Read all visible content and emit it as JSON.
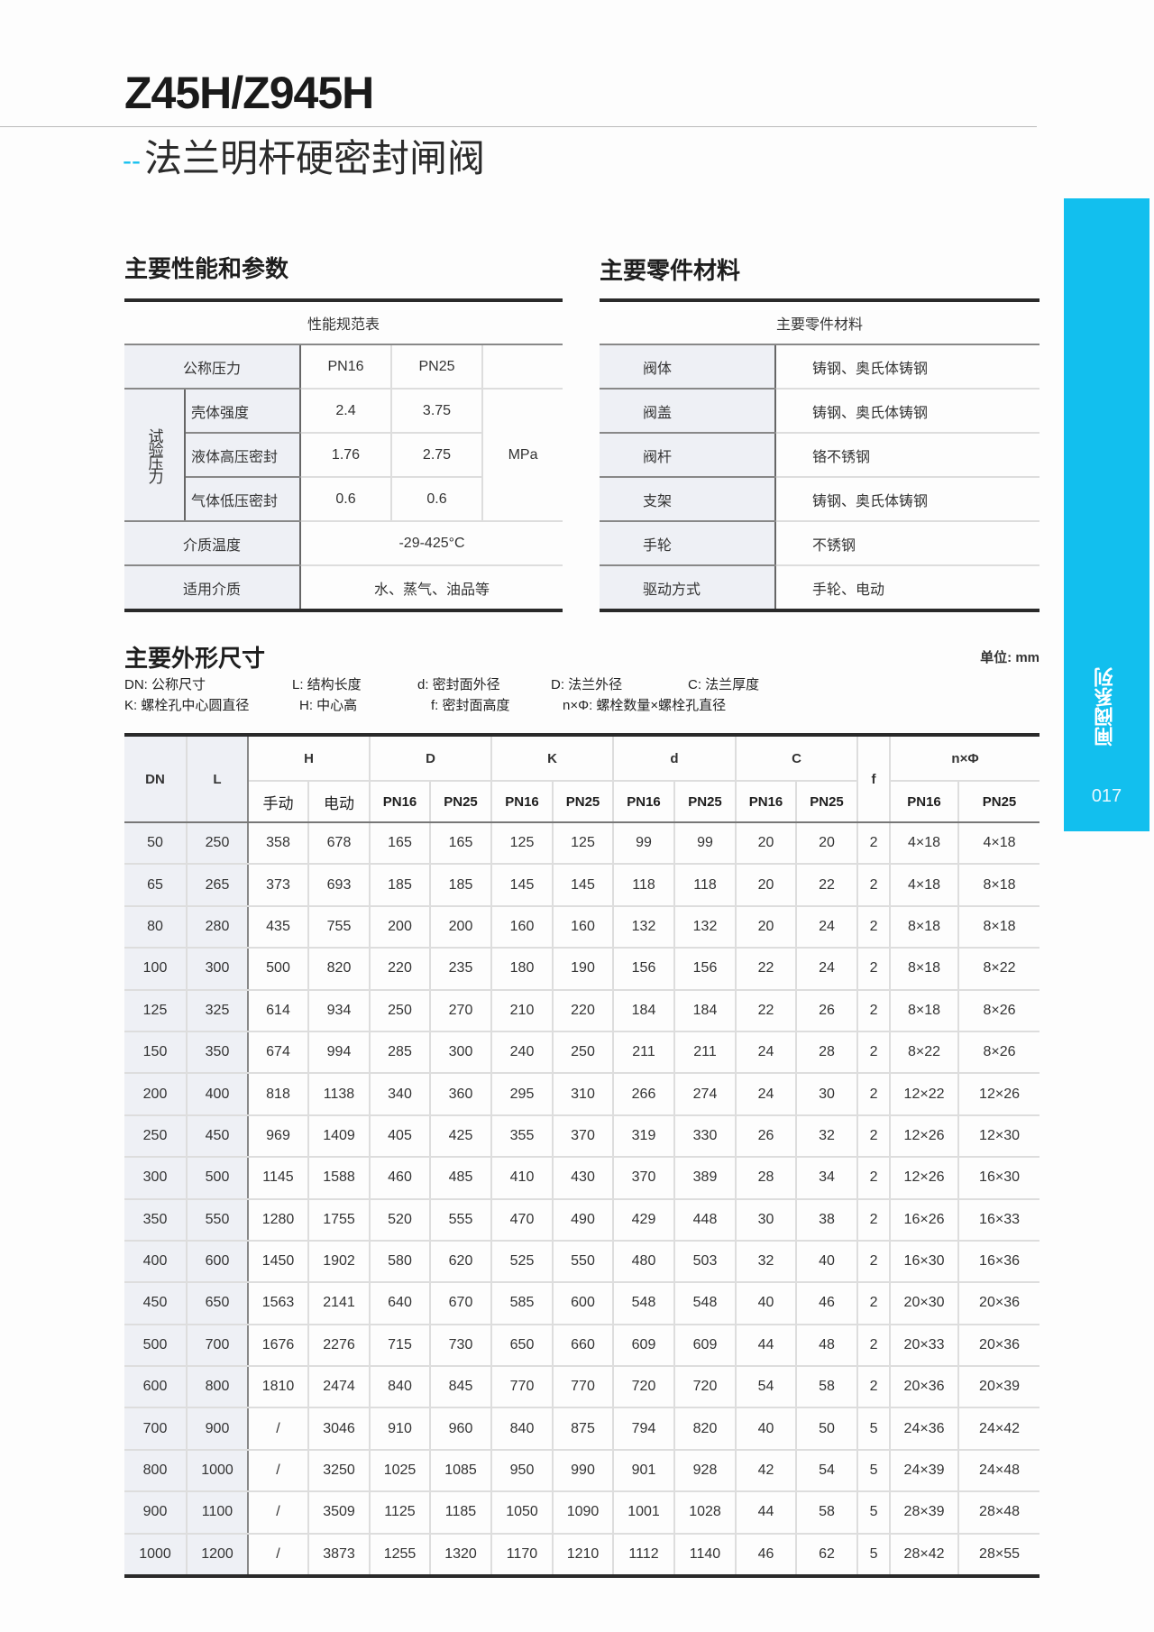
{
  "header": {
    "title": "Z45H/Z945H",
    "subtitle_prefix": "--",
    "subtitle": "法兰明杆硬密封闸阀"
  },
  "side_tab": {
    "series": "闸阀系列",
    "page": "017",
    "color": "#12bfee"
  },
  "performance": {
    "heading": "主要性能和参数",
    "caption": "性能规范表",
    "nominal_pressure_label": "公称压力",
    "pn16": "PN16",
    "pn25": "PN25",
    "test_pressure_label": "试验压力",
    "rows": [
      {
        "label": "壳体强度",
        "pn16": "2.4",
        "pn25": "3.75"
      },
      {
        "label": "液体高压密封",
        "pn16": "1.76",
        "pn25": "2.75"
      },
      {
        "label": "气体低压密封",
        "pn16": "0.6",
        "pn25": "0.6"
      }
    ],
    "unit": "MPa",
    "temp_label": "介质温度",
    "temp_value": "-29-425°C",
    "media_label": "适用介质",
    "media_value": "水、蒸气、油品等"
  },
  "materials": {
    "heading": "主要零件材料",
    "caption": "主要零件材料",
    "rows": [
      {
        "part": "阀体",
        "material": "铸钢、奥氏体铸钢"
      },
      {
        "part": "阀盖",
        "material": "铸钢、奥氏体铸钢"
      },
      {
        "part": "阀杆",
        "material": "铬不锈钢"
      },
      {
        "part": "支架",
        "material": "铸钢、奥氏体铸钢"
      },
      {
        "part": "手轮",
        "material": "不锈钢"
      },
      {
        "part": "驱动方式",
        "material": "手轮、电动"
      }
    ]
  },
  "dimensions": {
    "heading": "主要外形尺寸",
    "unit": "单位: mm",
    "legend": [
      "DN: 公称尺寸",
      "L: 结构长度",
      "d: 密封面外径",
      "D: 法兰外径",
      "C: 法兰厚度",
      "K: 螺栓孔中心圆直径",
      "H: 中心高",
      "f: 密封面高度",
      "n×Φ: 螺栓数量×螺栓孔直径"
    ],
    "headers": {
      "dn": "DN",
      "l": "L",
      "h": "H",
      "d_big": "D",
      "k": "K",
      "d_small": "d",
      "c": "C",
      "f": "f",
      "nphi": "n×Φ",
      "manual": "手动",
      "electric": "电动",
      "pn16": "PN16",
      "pn25": "PN25"
    },
    "rows": [
      [
        "50",
        "250",
        "358",
        "678",
        "165",
        "165",
        "125",
        "125",
        "99",
        "99",
        "20",
        "20",
        "2",
        "4×18",
        "4×18"
      ],
      [
        "65",
        "265",
        "373",
        "693",
        "185",
        "185",
        "145",
        "145",
        "118",
        "118",
        "20",
        "22",
        "2",
        "4×18",
        "8×18"
      ],
      [
        "80",
        "280",
        "435",
        "755",
        "200",
        "200",
        "160",
        "160",
        "132",
        "132",
        "20",
        "24",
        "2",
        "8×18",
        "8×18"
      ],
      [
        "100",
        "300",
        "500",
        "820",
        "220",
        "235",
        "180",
        "190",
        "156",
        "156",
        "22",
        "24",
        "2",
        "8×18",
        "8×22"
      ],
      [
        "125",
        "325",
        "614",
        "934",
        "250",
        "270",
        "210",
        "220",
        "184",
        "184",
        "22",
        "26",
        "2",
        "8×18",
        "8×26"
      ],
      [
        "150",
        "350",
        "674",
        "994",
        "285",
        "300",
        "240",
        "250",
        "211",
        "211",
        "24",
        "28",
        "2",
        "8×22",
        "8×26"
      ],
      [
        "200",
        "400",
        "818",
        "1138",
        "340",
        "360",
        "295",
        "310",
        "266",
        "274",
        "24",
        "30",
        "2",
        "12×22",
        "12×26"
      ],
      [
        "250",
        "450",
        "969",
        "1409",
        "405",
        "425",
        "355",
        "370",
        "319",
        "330",
        "26",
        "32",
        "2",
        "12×26",
        "12×30"
      ],
      [
        "300",
        "500",
        "1145",
        "1588",
        "460",
        "485",
        "410",
        "430",
        "370",
        "389",
        "28",
        "34",
        "2",
        "12×26",
        "16×30"
      ],
      [
        "350",
        "550",
        "1280",
        "1755",
        "520",
        "555",
        "470",
        "490",
        "429",
        "448",
        "30",
        "38",
        "2",
        "16×26",
        "16×33"
      ],
      [
        "400",
        "600",
        "1450",
        "1902",
        "580",
        "620",
        "525",
        "550",
        "480",
        "503",
        "32",
        "40",
        "2",
        "16×30",
        "16×36"
      ],
      [
        "450",
        "650",
        "1563",
        "2141",
        "640",
        "670",
        "585",
        "600",
        "548",
        "548",
        "40",
        "46",
        "2",
        "20×30",
        "20×36"
      ],
      [
        "500",
        "700",
        "1676",
        "2276",
        "715",
        "730",
        "650",
        "660",
        "609",
        "609",
        "44",
        "48",
        "2",
        "20×33",
        "20×36"
      ],
      [
        "600",
        "800",
        "1810",
        "2474",
        "840",
        "845",
        "770",
        "770",
        "720",
        "720",
        "54",
        "58",
        "2",
        "20×36",
        "20×39"
      ],
      [
        "700",
        "900",
        "/",
        "3046",
        "910",
        "960",
        "840",
        "875",
        "794",
        "820",
        "40",
        "50",
        "5",
        "24×36",
        "24×42"
      ],
      [
        "800",
        "1000",
        "/",
        "3250",
        "1025",
        "1085",
        "950",
        "990",
        "901",
        "928",
        "42",
        "54",
        "5",
        "24×39",
        "24×48"
      ],
      [
        "900",
        "1100",
        "/",
        "3509",
        "1125",
        "1185",
        "1050",
        "1090",
        "1001",
        "1028",
        "44",
        "58",
        "5",
        "28×39",
        "28×48"
      ],
      [
        "1000",
        "1200",
        "/",
        "3873",
        "1255",
        "1320",
        "1170",
        "1210",
        "1112",
        "1140",
        "46",
        "62",
        "5",
        "28×42",
        "28×55"
      ]
    ]
  }
}
